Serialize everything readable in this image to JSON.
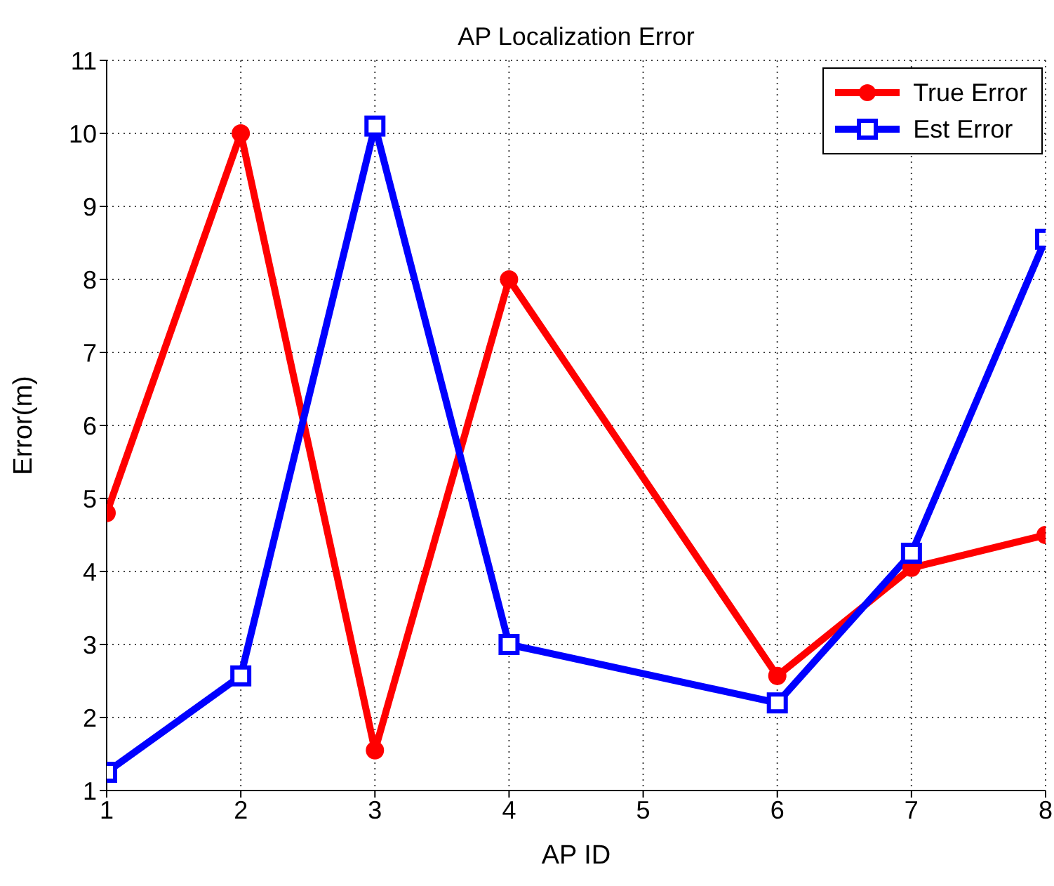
{
  "chart_data": {
    "type": "line",
    "title": "AP Localization Error",
    "xlabel": "AP ID",
    "ylabel": "Error(m)",
    "x": [
      1,
      2,
      3,
      4,
      6,
      7,
      8
    ],
    "series": [
      {
        "name": "True Error",
        "color": "#ff0000",
        "marker": "circle",
        "values": [
          4.8,
          10,
          1.55,
          8,
          2.57,
          4.05,
          4.5
        ]
      },
      {
        "name": "Est Error",
        "color": "#0000ff",
        "marker": "square",
        "values": [
          1.25,
          2.57,
          10.1,
          3,
          2.2,
          4.25,
          8.55
        ]
      }
    ],
    "xlim": [
      1,
      8
    ],
    "xticks": [
      1,
      2,
      3,
      4,
      5,
      6,
      7,
      8
    ],
    "ylim": [
      1,
      11
    ],
    "yticks": [
      1,
      2,
      3,
      4,
      5,
      6,
      7,
      8,
      9,
      10,
      11
    ],
    "grid": true,
    "legend": "top right"
  }
}
